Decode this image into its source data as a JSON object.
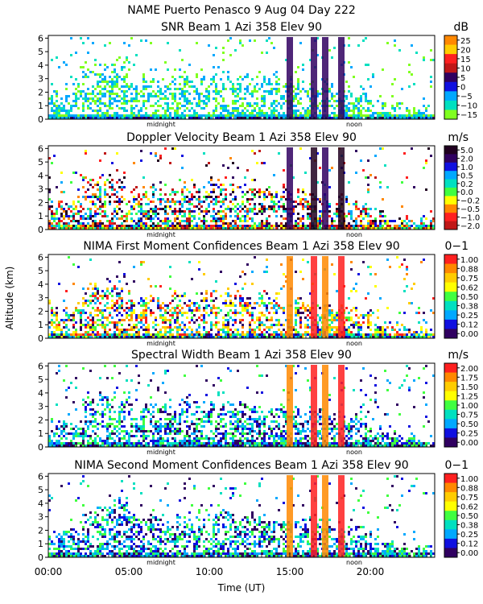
{
  "title": "NAME Puerto Penasco    9 Aug 04 Day 222",
  "y_axis_label": "Altitude (km)",
  "x_axis_label": "Time (UT)",
  "chart_data": [
    {
      "type": "heatmap",
      "title": "SNR Beam 1 Azi 358 Elev 90",
      "unit": "dB",
      "colorbar_ticks": [
        "25",
        "20",
        "15",
        "10",
        "5",
        "0",
        "−5",
        "−10",
        "−15"
      ],
      "colors": [
        "#ff8800",
        "#ffcc00",
        "#ff2020",
        "#c01818",
        "#300060",
        "#1010e0",
        "#00a8ff",
        "#00e0c0",
        "#80ff20"
      ],
      "yticks": [
        "0",
        "1",
        "2",
        "3",
        "4",
        "5",
        "6"
      ],
      "ylim": [
        0,
        6.2
      ],
      "markers": [
        "midnight",
        "noon"
      ],
      "xlim": [
        0,
        24
      ]
    },
    {
      "type": "heatmap",
      "title": "Doppler Velocity Beam 1 Azi 358 Elev 90",
      "unit": "m/s",
      "colorbar_ticks": [
        "5.0",
        "2.0",
        "1.0",
        "0.5",
        "0.2",
        "0.0",
        "−0.2",
        "−0.5",
        "−1.0",
        "−2.0"
      ],
      "colors": [
        "#200020",
        "#300060",
        "#1010e0",
        "#00a8ff",
        "#00e0c0",
        "#40ff40",
        "#ffff00",
        "#ff8800",
        "#ff2020",
        "#c01818"
      ],
      "yticks": [
        "0",
        "1",
        "2",
        "3",
        "4",
        "5",
        "6"
      ],
      "ylim": [
        0,
        6.2
      ],
      "markers": [
        "midnight",
        "noon"
      ],
      "xlim": [
        0,
        24
      ]
    },
    {
      "type": "heatmap",
      "title": "NIMA First Moment Confidences Beam 1 Azi 358 Elev 90",
      "unit": "0−1",
      "colorbar_ticks": [
        "1.00",
        "0.88",
        "0.75",
        "0.62",
        "0.50",
        "0.38",
        "0.25",
        "0.12",
        "0.00"
      ],
      "colors": [
        "#ff2020",
        "#ff8800",
        "#ffcc00",
        "#ffff00",
        "#40ff40",
        "#00e0c0",
        "#00a8ff",
        "#1010e0",
        "#300060"
      ],
      "yticks": [
        "0",
        "1",
        "2",
        "3",
        "4",
        "5",
        "6"
      ],
      "ylim": [
        0,
        6.2
      ],
      "markers": [
        "midnight",
        "noon"
      ],
      "xlim": [
        0,
        24
      ]
    },
    {
      "type": "heatmap",
      "title": "Spectral Width Beam 1 Azi 358 Elev 90",
      "unit": "m/s",
      "colorbar_ticks": [
        "2.00",
        "1.75",
        "1.50",
        "1.25",
        "1.00",
        "0.75",
        "0.50",
        "0.25",
        "0.00"
      ],
      "colors": [
        "#ff2020",
        "#ff8800",
        "#ffcc00",
        "#ffff00",
        "#40ff40",
        "#00e0c0",
        "#00a8ff",
        "#1010e0",
        "#300060"
      ],
      "yticks": [
        "0",
        "1",
        "2",
        "3",
        "4",
        "5",
        "6"
      ],
      "ylim": [
        0,
        6.2
      ],
      "markers": [
        "midnight",
        "noon"
      ],
      "xlim": [
        0,
        24
      ]
    },
    {
      "type": "heatmap",
      "title": "NIMA Second Moment Confidences Beam 1 Azi 358 Elev 90",
      "unit": "0−1",
      "colorbar_ticks": [
        "1.00",
        "0.88",
        "0.75",
        "0.62",
        "0.50",
        "0.38",
        "0.25",
        "0.12",
        "0.00"
      ],
      "colors": [
        "#ff2020",
        "#ff8800",
        "#ffcc00",
        "#ffff00",
        "#40ff40",
        "#00e0c0",
        "#00a8ff",
        "#1010e0",
        "#300060"
      ],
      "yticks": [
        "0",
        "1",
        "2",
        "3",
        "4",
        "5",
        "6"
      ],
      "ylim": [
        0,
        6.2
      ],
      "markers": [
        "midnight",
        "noon"
      ],
      "xlim": [
        0,
        24
      ]
    }
  ],
  "xticks": [
    "00:00",
    "05:00",
    "10:00",
    "15:00",
    "20:00"
  ],
  "xtick_hours": [
    0,
    5,
    10,
    15,
    20
  ]
}
